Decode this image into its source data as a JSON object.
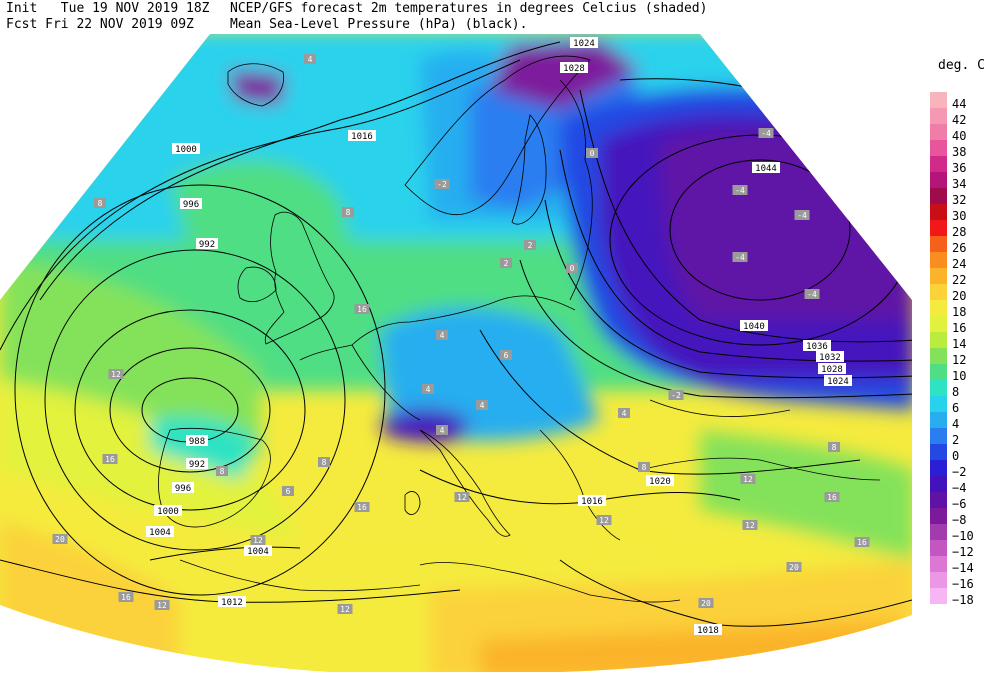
{
  "header": {
    "init_label": "Init",
    "init_value": "Tue 19 NOV 2019 18Z",
    "fcst_label": "Fcst",
    "fcst_value": "Fri 22 NOV 2019 09Z",
    "title_line1": "NCEP/GFS forecast 2m temperatures in degrees Celcius (shaded)",
    "title_line2": "Mean Sea-Level Pressure (hPa) (black)."
  },
  "legend": {
    "title": "deg. C",
    "items": [
      {
        "label": "44",
        "color": "#f7b4bd"
      },
      {
        "label": "42",
        "color": "#f598b2"
      },
      {
        "label": "40",
        "color": "#f07ca8"
      },
      {
        "label": "38",
        "color": "#e8559c"
      },
      {
        "label": "36",
        "color": "#d22a8b"
      },
      {
        "label": "34",
        "color": "#b5157a"
      },
      {
        "label": "32",
        "color": "#a00b4b"
      },
      {
        "label": "30",
        "color": "#c80f18"
      },
      {
        "label": "28",
        "color": "#f01818"
      },
      {
        "label": "26",
        "color": "#f5611a"
      },
      {
        "label": "24",
        "color": "#fa8d1f"
      },
      {
        "label": "22",
        "color": "#fbb42a"
      },
      {
        "label": "20",
        "color": "#fbd23a"
      },
      {
        "label": "18",
        "color": "#f5eb3e"
      },
      {
        "label": "16",
        "color": "#e2f23c"
      },
      {
        "label": "14",
        "color": "#b9ec3e"
      },
      {
        "label": "12",
        "color": "#84e25a"
      },
      {
        "label": "10",
        "color": "#4fde84"
      },
      {
        "label": "8",
        "color": "#2de3c3"
      },
      {
        "label": "6",
        "color": "#29d2ec"
      },
      {
        "label": "4",
        "color": "#28aef0"
      },
      {
        "label": "2",
        "color": "#2a7ef0"
      },
      {
        "label": "0",
        "color": "#2348e3"
      },
      {
        "label": "−2",
        "color": "#2a1ed6"
      },
      {
        "label": "−4",
        "color": "#4412bd"
      },
      {
        "label": "−6",
        "color": "#5f12a6"
      },
      {
        "label": "−8",
        "color": "#7d1a9c"
      },
      {
        "label": "−10",
        "color": "#a23cad"
      },
      {
        "label": "−12",
        "color": "#c357c1"
      },
      {
        "label": "−14",
        "color": "#dc77d6"
      },
      {
        "label": "−16",
        "color": "#ec97e6"
      },
      {
        "label": "−18",
        "color": "#f6b6f3"
      }
    ]
  },
  "map": {
    "isobar_labels": [
      "1024",
      "1028",
      "1016",
      "1000",
      "996",
      "992",
      "988",
      "992",
      "996",
      "1000",
      "1004",
      "1004",
      "1012",
      "1044",
      "1040",
      "1036",
      "1032",
      "1028",
      "1024",
      "1020",
      "1016",
      "1018"
    ],
    "temp_labels": [
      "4",
      "8",
      "8",
      "-4",
      "-4",
      "-4",
      "-4",
      "-4",
      "0",
      "4",
      "12",
      "4",
      "16",
      "12",
      "20",
      "12",
      "16",
      "20",
      "16",
      "12",
      "12",
      "12",
      "16",
      "20",
      "8",
      "8",
      "6",
      "12",
      "4",
      "4",
      "2",
      "0",
      "2",
      "-2",
      "6",
      "4",
      "8",
      "-2",
      "12",
      "16",
      "8",
      "16"
    ]
  }
}
